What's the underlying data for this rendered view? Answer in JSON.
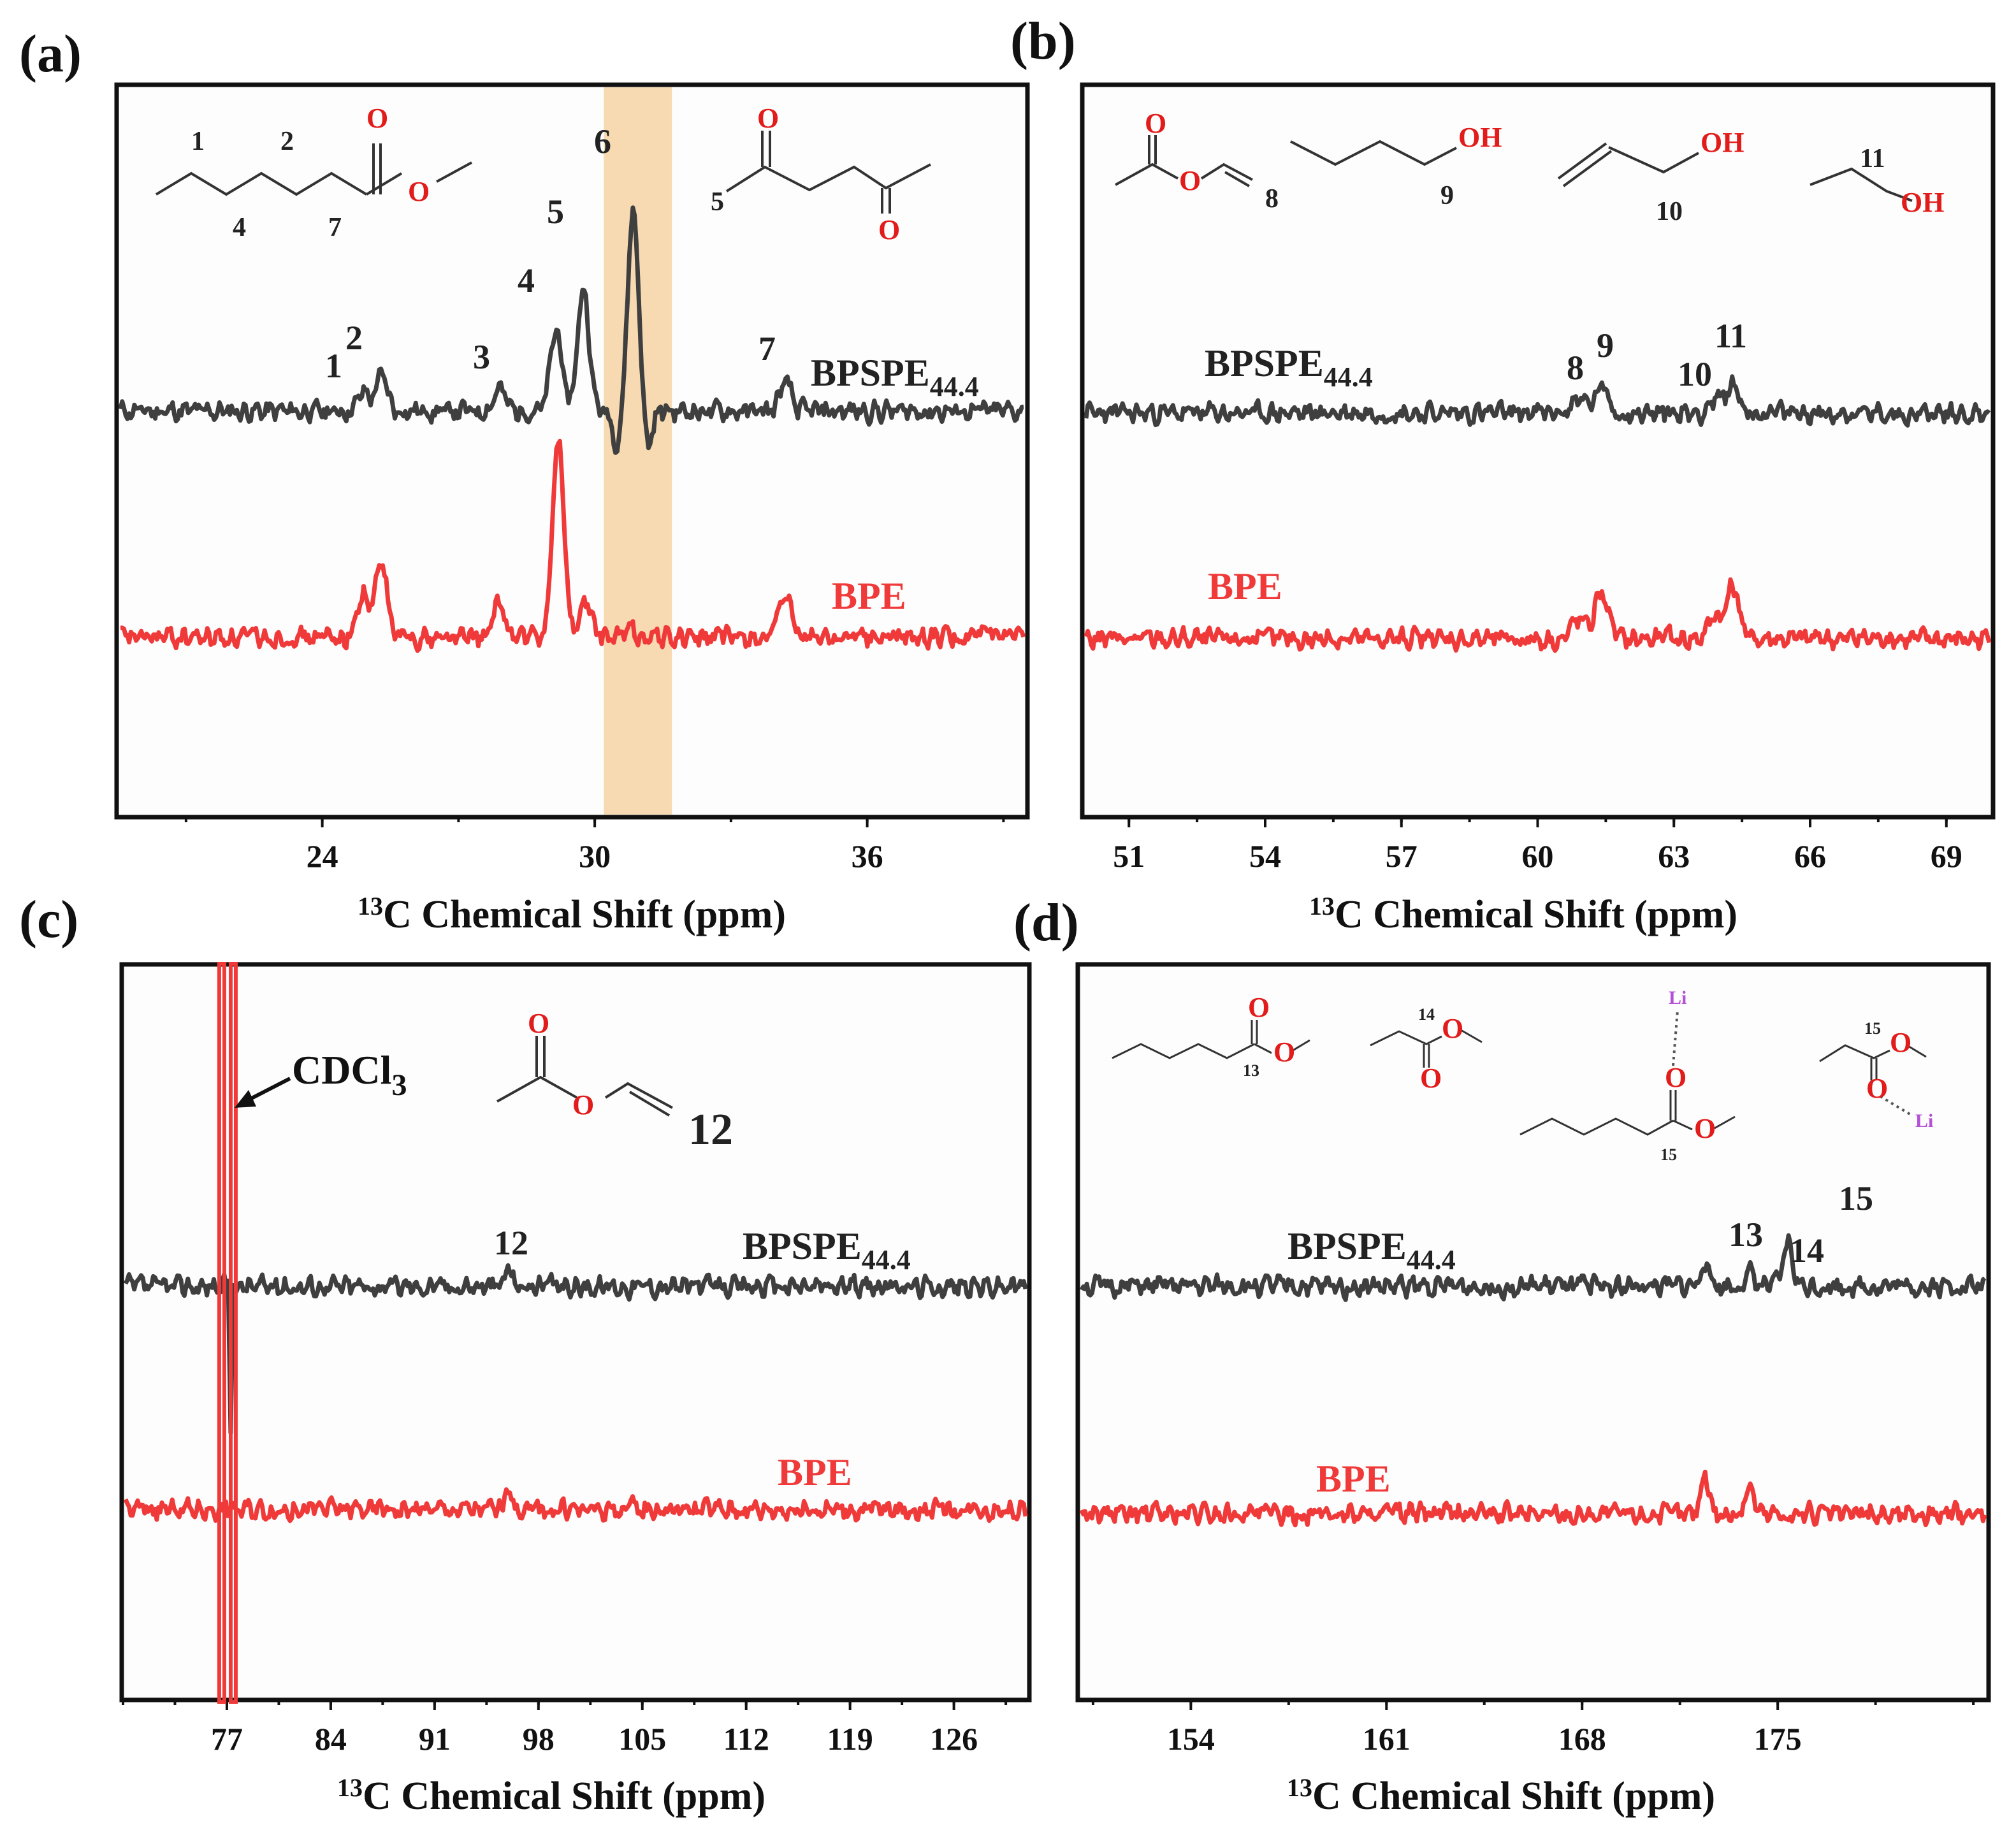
{
  "figure": {
    "colors": {
      "bpspe": "#3f3f3f",
      "bpe": "#f03a3a",
      "highlight": "#f7d8ae",
      "cdcl3_box": "#f03a3a"
    },
    "xlabel": "13C Chemical Shift (ppm)",
    "xlabel_sup": "13",
    "xlabel_rest": "C Chemical Shift (ppm)"
  },
  "chart_data": [
    {
      "id": "a",
      "type": "line",
      "panel_label": "(a)",
      "xlim": [
        19.5,
        39.5
      ],
      "x_ticks": [
        24,
        30,
        36
      ],
      "tick_labels": [
        "24",
        "30",
        "36"
      ],
      "xlabel": "13C Chemical Shift (ppm)",
      "highlight_range": [
        30.2,
        31.7
      ],
      "series": [
        {
          "name": "BPSPE44.4",
          "label_main": "BPSPE",
          "label_sub": "44.4",
          "color": "#3f3f3f",
          "peaks": [
            [
              24.9,
              0.35
            ],
            [
              25.3,
              0.7
            ],
            [
              27.9,
              0.45
            ],
            [
              29.15,
              1.6
            ],
            [
              29.75,
              2.4
            ],
            [
              30.85,
              3.9
            ],
            [
              34.2,
              0.55
            ]
          ],
          "negative_peaks": [
            [
              30.5,
              0.65
            ],
            [
              31.15,
              0.8
            ]
          ]
        },
        {
          "name": "BPE",
          "label_main": "BPE",
          "label_sub": "",
          "color": "#f03a3a",
          "peaks": [
            [
              24.9,
              0.85
            ],
            [
              25.3,
              1.45
            ],
            [
              27.9,
              0.65
            ],
            [
              29.2,
              3.85
            ],
            [
              29.8,
              0.65
            ],
            [
              30.8,
              0.15
            ],
            [
              34.2,
              0.8
            ]
          ],
          "negative_peaks": []
        }
      ],
      "peak_labels": [
        "1",
        "2",
        "3",
        "4",
        "5",
        "6",
        "7"
      ],
      "annotations": [
        "1",
        "2",
        "4",
        "7",
        "5",
        "6"
      ]
    },
    {
      "id": "b",
      "type": "line",
      "panel_label": "(b)",
      "xlim": [
        50,
        70
      ],
      "x_ticks": [
        51,
        54,
        57,
        60,
        63,
        66,
        69
      ],
      "tick_labels": [
        "51",
        "54",
        "57",
        "60",
        "63",
        "66",
        "69"
      ],
      "xlabel": "13C Chemical Shift (ppm)",
      "series": [
        {
          "name": "BPSPE44.4",
          "label_main": "BPSPE",
          "label_sub": "44.4",
          "color": "#3f3f3f",
          "peaks": [
            [
              60.9,
              0.3
            ],
            [
              61.4,
              0.5
            ],
            [
              63.9,
              0.25
            ],
            [
              64.3,
              0.55
            ]
          ],
          "negative_peaks": []
        },
        {
          "name": "BPE",
          "label_main": "BPE",
          "label_sub": "",
          "color": "#f03a3a",
          "peaks": [
            [
              60.9,
              0.4
            ],
            [
              61.4,
              0.95
            ],
            [
              63.9,
              0.45
            ],
            [
              64.3,
              1.0
            ]
          ],
          "negative_peaks": []
        }
      ],
      "peak_labels": [
        "8",
        "9",
        "10",
        "11"
      ],
      "annotations": [
        "8",
        "9",
        "10",
        "11",
        "OH",
        "OH",
        "OH"
      ]
    },
    {
      "id": "c",
      "type": "line",
      "panel_label": "(c)",
      "xlim": [
        70,
        131
      ],
      "x_ticks": [
        77,
        84,
        91,
        98,
        105,
        112,
        119,
        126
      ],
      "tick_labels": [
        "77",
        "84",
        "91",
        "98",
        "105",
        "112",
        "119",
        "126"
      ],
      "xlabel": "13C Chemical Shift (ppm)",
      "cdcl3_label": "CDCl",
      "cdcl3_sub": "3",
      "cdcl3_ppm": 77,
      "series": [
        {
          "name": "BPSPE44.4",
          "label_main": "BPSPE",
          "label_sub": "44.4",
          "color": "#3f3f3f",
          "peaks": [
            [
              96.0,
              0.4
            ]
          ],
          "negative_peaks": []
        },
        {
          "name": "BPE",
          "label_main": "BPE",
          "label_sub": "",
          "color": "#f03a3a",
          "peaks": [
            [
              96.0,
              0.45
            ]
          ],
          "negative_peaks": []
        }
      ],
      "peak_labels": [
        "12"
      ],
      "annotations": [
        "12"
      ]
    },
    {
      "id": "d",
      "type": "line",
      "panel_label": "(d)",
      "xlim": [
        150,
        182.5
      ],
      "x_ticks": [
        154,
        161,
        168,
        175
      ],
      "tick_labels": [
        "154",
        "161",
        "168",
        "175"
      ],
      "xlabel": "13C Chemical Shift (ppm)",
      "series": [
        {
          "name": "BPSPE44.4",
          "label_main": "BPSPE",
          "label_sub": "44.4",
          "color": "#3f3f3f",
          "peaks": [
            [
              172.4,
              0.45
            ],
            [
              174.0,
              0.25
            ],
            [
              175.35,
              1.15
            ]
          ],
          "negative_peaks": [
            [
              175.3,
              0.35
            ]
          ]
        },
        {
          "name": "BPE",
          "label_main": "BPE",
          "label_sub": "",
          "color": "#f03a3a",
          "peaks": [
            [
              172.4,
              0.75
            ],
            [
              174.0,
              0.55
            ]
          ],
          "negative_peaks": []
        }
      ],
      "peak_labels": [
        "13",
        "14",
        "15"
      ],
      "annotations": [
        "13",
        "14",
        "15",
        "15",
        "Li",
        "Li"
      ]
    }
  ]
}
